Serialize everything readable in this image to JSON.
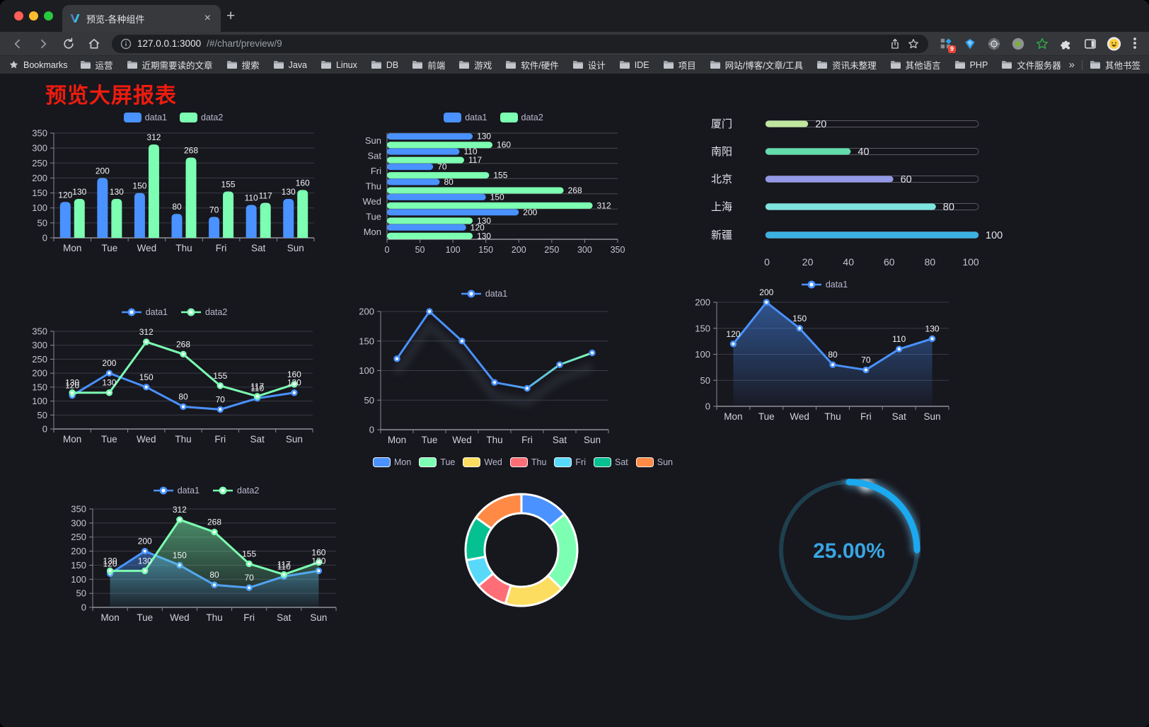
{
  "browser": {
    "tab": {
      "title": "预览-各种组件"
    },
    "address_bar": {
      "url_host": "127.0.0.1:3000",
      "url_path": "/#/chart/preview/9"
    },
    "extensions_badge": "9",
    "bookmarks": {
      "label": "Bookmarks",
      "items": [
        "运营",
        "近期需要读的文章",
        "搜索",
        "Java",
        "Linux",
        "DB",
        "前端",
        "游戏",
        "软件/硬件",
        "设计",
        "IDE",
        "项目",
        "网站/博客/文章/工具",
        "资讯未整理",
        "其他语言",
        "PHP",
        "文件服务器"
      ],
      "overflow": "»",
      "other_label": "其他书签"
    }
  },
  "page": {
    "title": "预览大屏报表"
  },
  "chart_data": [
    {
      "id": "grouped-bar",
      "type": "bar",
      "categories": [
        "Mon",
        "Tue",
        "Wed",
        "Thu",
        "Fri",
        "Sat",
        "Sun"
      ],
      "series": [
        {
          "name": "data1",
          "color": "#4992ff",
          "values": [
            120,
            200,
            150,
            80,
            70,
            110,
            130
          ]
        },
        {
          "name": "data2",
          "color": "#7cffb2",
          "values": [
            130,
            130,
            312,
            268,
            155,
            117,
            160
          ]
        }
      ],
      "ylim": [
        0,
        350
      ],
      "yticks": [
        0,
        50,
        100,
        150,
        200,
        250,
        300,
        350
      ],
      "legend_position": "top",
      "value_labels": true,
      "grid": true
    },
    {
      "id": "horizontal-bar",
      "type": "hbar",
      "categories": [
        "Mon",
        "Tue",
        "Wed",
        "Thu",
        "Fri",
        "Sat",
        "Sun"
      ],
      "series": [
        {
          "name": "data1",
          "color": "#4992ff",
          "values": [
            120,
            200,
            150,
            80,
            70,
            110,
            130
          ]
        },
        {
          "name": "data2",
          "color": "#7cffb2",
          "values": [
            130,
            130,
            312,
            268,
            155,
            117,
            160
          ]
        }
      ],
      "xlim": [
        0,
        350
      ],
      "xticks": [
        0,
        50,
        100,
        150,
        200,
        250,
        300,
        350
      ],
      "legend_position": "top",
      "value_labels": true
    },
    {
      "id": "progress-bars",
      "type": "progress",
      "max": 100,
      "xticks": [
        0,
        20,
        40,
        60,
        80,
        100
      ],
      "items": [
        {
          "label": "厦门",
          "value": 20,
          "color": "#bfe69e"
        },
        {
          "label": "南阳",
          "value": 40,
          "color": "#63dcab"
        },
        {
          "label": "北京",
          "value": 60,
          "color": "#9399e6"
        },
        {
          "label": "上海",
          "value": 80,
          "color": "#7ce5dd"
        },
        {
          "label": "新疆",
          "value": 100,
          "color": "#3ab2e3"
        }
      ]
    },
    {
      "id": "line-dual",
      "type": "line",
      "categories": [
        "Mon",
        "Tue",
        "Wed",
        "Thu",
        "Fri",
        "Sat",
        "Sun"
      ],
      "series": [
        {
          "name": "data1",
          "color": "#4992ff",
          "values": [
            120,
            200,
            150,
            80,
            70,
            110,
            130
          ]
        },
        {
          "name": "data2",
          "color": "#7cffb2",
          "values": [
            130,
            130,
            312,
            268,
            155,
            117,
            160
          ]
        }
      ],
      "ylim": [
        0,
        350
      ],
      "yticks": [
        0,
        50,
        100,
        150,
        200,
        250,
        300,
        350
      ],
      "legend_position": "top",
      "value_labels": true
    },
    {
      "id": "line-gradient",
      "type": "line",
      "categories": [
        "Mon",
        "Tue",
        "Wed",
        "Thu",
        "Fri",
        "Sat",
        "Sun"
      ],
      "series": [
        {
          "name": "data1",
          "color": "#4992ff",
          "gradient": [
            "#4992ff",
            "#7cffb2"
          ],
          "values": [
            120,
            200,
            150,
            80,
            70,
            110,
            130
          ]
        }
      ],
      "ylim": [
        0,
        200
      ],
      "yticks": [
        0,
        50,
        100,
        150,
        200
      ],
      "legend_position": "top",
      "value_labels": false,
      "shadow": true
    },
    {
      "id": "line-area",
      "type": "line",
      "categories": [
        "Mon",
        "Tue",
        "Wed",
        "Thu",
        "Fri",
        "Sat",
        "Sun"
      ],
      "series": [
        {
          "name": "data1",
          "color": "#4992ff",
          "area": true,
          "values": [
            120,
            200,
            150,
            80,
            70,
            110,
            130
          ]
        }
      ],
      "ylim": [
        0,
        200
      ],
      "yticks": [
        0,
        50,
        100,
        150,
        200
      ],
      "legend_position": "top",
      "value_labels": true
    },
    {
      "id": "line-dual-area",
      "type": "line",
      "categories": [
        "Mon",
        "Tue",
        "Wed",
        "Thu",
        "Fri",
        "Sat",
        "Sun"
      ],
      "series": [
        {
          "name": "data1",
          "color": "#4992ff",
          "area": true,
          "values": [
            120,
            200,
            150,
            80,
            70,
            110,
            130
          ]
        },
        {
          "name": "data2",
          "color": "#7cffb2",
          "area": true,
          "values": [
            130,
            130,
            312,
            268,
            155,
            117,
            160
          ]
        }
      ],
      "ylim": [
        0,
        350
      ],
      "yticks": [
        0,
        50,
        100,
        150,
        200,
        250,
        300,
        350
      ],
      "legend_position": "top",
      "value_labels": true
    },
    {
      "id": "donut",
      "type": "donut",
      "categories": [
        "Mon",
        "Tue",
        "Wed",
        "Thu",
        "Fri",
        "Sat",
        "Sun"
      ],
      "values": [
        120,
        200,
        150,
        80,
        70,
        110,
        130
      ],
      "colors": [
        "#4992ff",
        "#7cffb2",
        "#fddd60",
        "#ff6e76",
        "#58d9f9",
        "#05c091",
        "#ff8a45"
      ],
      "legend_position": "top"
    },
    {
      "id": "gauge",
      "type": "gauge",
      "value": 25,
      "label": "25.00%",
      "color": "#1ba9f0",
      "track": "#1e404e"
    }
  ]
}
